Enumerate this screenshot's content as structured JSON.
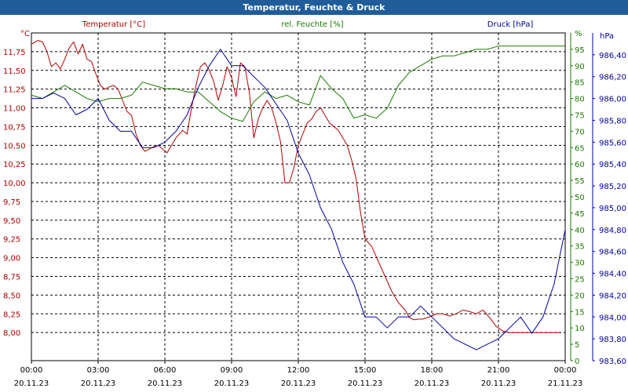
{
  "window": {
    "title": "Temperatur, Feuchte & Druck"
  },
  "colors": {
    "temperature": "#b00000",
    "humidity": "#1a7a00",
    "pressure": "#0000a0",
    "titlebar": "#1f5c99"
  },
  "chart_data": {
    "type": "line",
    "title": "Temperatur, Feuchte & Druck",
    "grid": true,
    "x_ticks": [
      {
        "time": "00:00",
        "date": "20.11.23"
      },
      {
        "time": "03:00",
        "date": "20.11.23"
      },
      {
        "time": "06:00",
        "date": "20.11.23"
      },
      {
        "time": "09:00",
        "date": "20.11.23"
      },
      {
        "time": "12:00",
        "date": "20.11.23"
      },
      {
        "time": "15:00",
        "date": "20.11.23"
      },
      {
        "time": "18:00",
        "date": "20.11.23"
      },
      {
        "time": "21:00",
        "date": "20.11.23"
      },
      {
        "time": "00:00",
        "date": "21.11.23"
      }
    ],
    "axes": {
      "temperature": {
        "label": "Temperatur [°C]",
        "unit": "°C",
        "min": 7.625,
        "max": 12.0,
        "ticks": [
          "8,00",
          "8,25",
          "8,50",
          "8,75",
          "9,00",
          "9,25",
          "9,50",
          "9,75",
          "10,00",
          "10,25",
          "10,50",
          "10,75",
          "11,00",
          "11,25",
          "11,50",
          "11,75"
        ]
      },
      "humidity": {
        "label": "rel. Feuchte [%]",
        "unit": "%",
        "min": 0,
        "max": 100,
        "ticks": [
          "0",
          "5",
          "10",
          "15",
          "20",
          "25",
          "30",
          "35",
          "40",
          "45",
          "50",
          "55",
          "60",
          "65",
          "70",
          "75",
          "80",
          "85",
          "90",
          "95"
        ]
      },
      "pressure": {
        "label": "Druck [hPa]",
        "unit": "hPa",
        "min": 983.6,
        "max": 986.6,
        "ticks": [
          "983,60",
          "983,80",
          "984,00",
          "984,20",
          "984,40",
          "984,60",
          "984,80",
          "985,00",
          "985,20",
          "985,40",
          "985,60",
          "985,80",
          "986,00",
          "986,20",
          "986,40"
        ]
      }
    },
    "series": [
      {
        "name": "Temperatur [°C]",
        "axis": "temperature",
        "x": [
          0,
          0.3,
          0.5,
          0.7,
          0.9,
          1.1,
          1.3,
          1.5,
          1.7,
          1.9,
          2.1,
          2.3,
          2.5,
          2.7,
          2.9,
          3.1,
          3.3,
          3.5,
          3.7,
          3.9,
          4.1,
          4.3,
          4.5,
          4.7,
          4.9,
          5.1,
          5.3,
          5.5,
          5.7,
          5.9,
          6.1,
          6.3,
          6.5,
          6.8,
          7.0,
          7.2,
          7.4,
          7.6,
          7.8,
          8.0,
          8.2,
          8.4,
          8.6,
          8.8,
          9.0,
          9.2,
          9.4,
          9.6,
          9.8,
          10.0,
          10.2,
          10.4,
          10.6,
          10.8,
          11.0,
          11.2,
          11.4,
          11.6,
          11.8,
          12.0,
          12.2,
          12.4,
          12.6,
          12.8,
          13.0,
          13.2,
          13.4,
          13.6,
          13.8,
          14.0,
          14.2,
          14.4,
          14.6,
          14.8,
          15.0,
          15.3,
          15.6,
          15.9,
          16.2,
          16.5,
          16.8,
          17.0,
          17.2,
          17.4,
          17.6,
          17.8,
          18.0,
          18.2,
          18.5,
          18.8,
          19.1,
          19.4,
          19.7,
          20.0,
          20.3,
          20.6,
          20.9,
          21.2,
          21.5,
          21.8,
          22.1,
          22.4,
          22.7,
          23.0,
          23.3,
          23.6,
          23.8
        ],
        "values": [
          11.85,
          11.9,
          11.88,
          11.75,
          11.55,
          11.6,
          11.52,
          11.65,
          11.8,
          11.88,
          11.72,
          11.85,
          11.65,
          11.62,
          11.45,
          11.3,
          11.25,
          11.28,
          11.3,
          11.25,
          11.1,
          10.95,
          10.9,
          10.65,
          10.5,
          10.42,
          10.45,
          10.48,
          10.5,
          10.45,
          10.4,
          10.5,
          10.6,
          10.7,
          10.65,
          11.0,
          11.3,
          11.55,
          11.6,
          11.5,
          11.35,
          11.1,
          11.3,
          11.55,
          11.4,
          11.15,
          11.6,
          11.55,
          11.2,
          10.6,
          10.85,
          11.0,
          11.1,
          11.0,
          10.8,
          10.55,
          10.0,
          10.0,
          10.2,
          10.5,
          10.65,
          10.8,
          10.85,
          10.95,
          11.0,
          10.9,
          10.8,
          10.75,
          10.7,
          10.6,
          10.5,
          10.3,
          10.05,
          9.6,
          9.25,
          9.15,
          8.95,
          8.75,
          8.55,
          8.4,
          8.3,
          8.2,
          8.17,
          8.18,
          8.18,
          8.2,
          8.22,
          8.25,
          8.25,
          8.22,
          8.25,
          8.3,
          8.28,
          8.25,
          8.3,
          8.2,
          8.08,
          8.02,
          8.0,
          8.0,
          8.0,
          8.0,
          8.0,
          8.0,
          8.0,
          8.0,
          8.0
        ]
      },
      {
        "name": "rel. Feuchte [%]",
        "axis": "humidity",
        "x": [
          0,
          0.5,
          1.0,
          1.5,
          2.0,
          2.5,
          3.0,
          3.5,
          4.0,
          4.5,
          5.0,
          5.5,
          6.0,
          6.5,
          7.0,
          7.5,
          8.0,
          8.5,
          9.0,
          9.5,
          10.0,
          10.5,
          11.0,
          11.5,
          12.0,
          12.5,
          13.0,
          13.5,
          14.0,
          14.5,
          15.0,
          15.5,
          16.0,
          16.5,
          17.0,
          17.5,
          18.0,
          18.5,
          19.0,
          19.5,
          20.0,
          20.5,
          21.0,
          21.5,
          22.0,
          22.5,
          23.0,
          23.5,
          24.0
        ],
        "values": [
          81,
          80,
          82,
          84,
          82,
          80,
          79,
          80,
          80,
          81,
          85,
          84,
          83,
          83,
          82,
          82,
          79,
          76,
          74,
          73,
          79,
          82,
          80,
          81,
          79,
          78,
          87,
          83,
          80,
          74,
          75,
          74,
          77,
          84,
          88,
          90,
          92,
          93,
          93,
          94,
          95,
          95,
          96,
          96,
          96,
          96,
          96,
          96,
          96
        ]
      },
      {
        "name": "Druck [hPa]",
        "axis": "pressure",
        "x": [
          0,
          0.5,
          1.0,
          1.5,
          2.0,
          2.5,
          3.0,
          3.5,
          4.0,
          4.5,
          5.0,
          5.5,
          6.0,
          6.5,
          7.0,
          7.5,
          8.0,
          8.5,
          9.0,
          9.5,
          10.0,
          10.5,
          11.0,
          11.5,
          12.0,
          12.5,
          13.0,
          13.5,
          14.0,
          14.5,
          15.0,
          15.5,
          16.0,
          16.5,
          17.0,
          17.5,
          18.0,
          18.5,
          19.0,
          19.5,
          20.0,
          20.5,
          21.0,
          21.5,
          22.0,
          22.5,
          23.0,
          23.5,
          24.0
        ],
        "values": [
          986.0,
          986.0,
          986.05,
          986.0,
          985.85,
          985.9,
          986.0,
          985.8,
          985.7,
          985.7,
          985.55,
          985.55,
          985.6,
          985.7,
          985.85,
          986.1,
          986.3,
          986.45,
          986.3,
          986.3,
          986.2,
          986.1,
          985.95,
          985.8,
          985.5,
          985.3,
          985.0,
          984.8,
          984.5,
          984.3,
          984.0,
          984.0,
          983.9,
          984.0,
          984.0,
          984.1,
          984.0,
          983.9,
          983.8,
          983.75,
          983.7,
          983.75,
          983.8,
          983.9,
          984.0,
          983.85,
          984.0,
          984.3,
          984.8
        ]
      }
    ]
  }
}
